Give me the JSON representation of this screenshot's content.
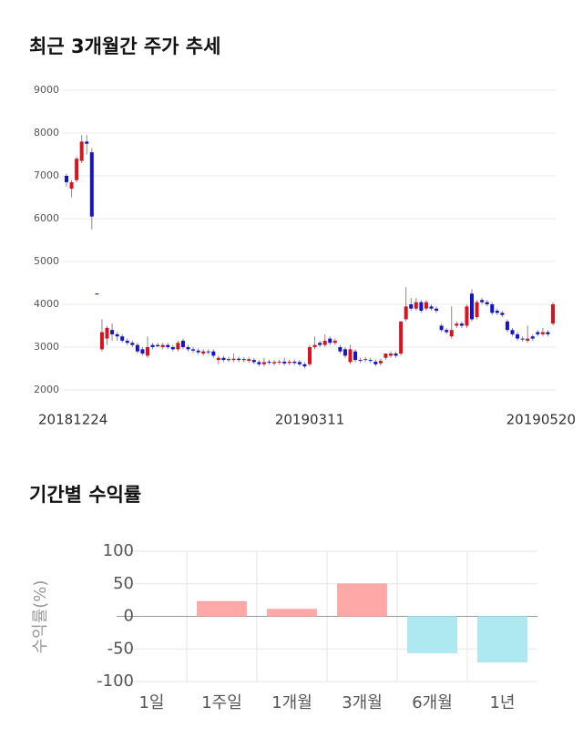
{
  "chart_data": [
    {
      "type": "candlestick",
      "title": "최근 3개월간 주가 추세",
      "categories": [
        "20181224",
        null,
        null,
        null,
        null,
        null,
        null,
        null,
        null,
        null,
        null,
        null,
        null,
        null,
        null,
        null,
        null,
        null,
        null,
        null,
        null,
        null,
        null,
        null,
        null,
        null,
        null,
        null,
        null,
        null,
        null,
        null,
        null,
        null,
        null,
        null,
        null,
        null,
        null,
        null,
        null,
        null,
        null,
        null,
        null,
        null,
        null,
        null,
        "20190311",
        null,
        null,
        null,
        null,
        null,
        null,
        null,
        null,
        null,
        null,
        null,
        null,
        null,
        null,
        null,
        null,
        null,
        null,
        null,
        null,
        null,
        null,
        null,
        null,
        null,
        null,
        null,
        null,
        null,
        null,
        null,
        null,
        null,
        null,
        null,
        null,
        null,
        null,
        null,
        null,
        null,
        null,
        null,
        null,
        null,
        null,
        null,
        "20190520"
      ],
      "open": [
        7000,
        6700,
        6900,
        7350,
        7800,
        7550,
        4250,
        2950,
        3200,
        3400,
        3300,
        3250,
        3150,
        3100,
        3050,
        2950,
        2800,
        3050,
        3050,
        3000,
        3050,
        3000,
        2950,
        3150,
        3000,
        2950,
        2920,
        2850,
        2900,
        2900,
        2700,
        2750,
        2720,
        2700,
        2730,
        2720,
        2680,
        2700,
        2650,
        2600,
        2660,
        2620,
        2640,
        2660,
        2630,
        2660,
        2650,
        2600,
        2600,
        3000,
        3100,
        3050,
        3200,
        3100,
        3000,
        2950,
        2650,
        2900,
        2700,
        2700,
        2700,
        2660,
        2620,
        2750,
        2800,
        2850,
        2850,
        3650,
        4000,
        3900,
        4050,
        3900,
        3950,
        3900,
        3500,
        3400,
        3250,
        3500,
        3550,
        3500,
        4250,
        3700,
        4100,
        4050,
        4000,
        3850,
        3800,
        3600,
        3400,
        3300,
        3200,
        3150,
        3250,
        3350,
        3300,
        3350,
        3550
      ],
      "high": [
        7050,
        6900,
        7450,
        7950,
        7950,
        7650,
        4260,
        3650,
        3500,
        3550,
        3350,
        3300,
        3200,
        3150,
        3100,
        3000,
        3250,
        3100,
        3100,
        3100,
        3100,
        3050,
        3150,
        3200,
        3050,
        3000,
        2970,
        2950,
        2950,
        2950,
        2800,
        2800,
        2770,
        2850,
        2780,
        2770,
        2770,
        2750,
        2700,
        2750,
        2710,
        2700,
        2710,
        2750,
        2710,
        2710,
        2700,
        2650,
        3050,
        3250,
        3150,
        3300,
        3250,
        3200,
        3050,
        3000,
        3050,
        2950,
        2750,
        2770,
        2750,
        2710,
        2730,
        2850,
        2900,
        2900,
        3600,
        4400,
        4150,
        4150,
        4100,
        4100,
        4000,
        3950,
        3550,
        3450,
        3950,
        3600,
        3600,
        4000,
        4350,
        4100,
        4150,
        4100,
        4050,
        3900,
        3850,
        3650,
        3450,
        3350,
        3250,
        3500,
        3300,
        3400,
        3450,
        3400,
        4050
      ],
      "low": [
        6750,
        6500,
        6850,
        7300,
        7500,
        5750,
        4230,
        2900,
        3050,
        3150,
        3150,
        3100,
        3050,
        3000,
        2850,
        2800,
        2750,
        2950,
        3000,
        2950,
        2950,
        2900,
        2900,
        2950,
        2900,
        2870,
        2830,
        2800,
        2830,
        2750,
        2600,
        2650,
        2650,
        2650,
        2650,
        2650,
        2630,
        2600,
        2550,
        2550,
        2590,
        2570,
        2590,
        2570,
        2580,
        2580,
        2550,
        2500,
        2550,
        2950,
        3000,
        3000,
        3050,
        3050,
        2850,
        2750,
        2600,
        2650,
        2630,
        2650,
        2630,
        2550,
        2570,
        2700,
        2750,
        2750,
        2800,
        3600,
        3850,
        3850,
        3800,
        3850,
        3850,
        3800,
        3350,
        3300,
        3200,
        3450,
        3450,
        3450,
        3600,
        3650,
        4000,
        3950,
        3750,
        3750,
        3700,
        3350,
        3250,
        3150,
        3130,
        3100,
        3150,
        3250,
        3250,
        3250,
        3500
      ],
      "close": [
        6850,
        6850,
        7400,
        7800,
        7750,
        6050,
        4240,
        3350,
        3450,
        3300,
        3250,
        3150,
        3100,
        3050,
        2900,
        2850,
        3000,
        3000,
        3020,
        3050,
        3000,
        2950,
        3100,
        3000,
        2950,
        2920,
        2880,
        2900,
        2880,
        2800,
        2750,
        2700,
        2700,
        2730,
        2700,
        2700,
        2720,
        2650,
        2600,
        2650,
        2640,
        2650,
        2660,
        2620,
        2660,
        2630,
        2600,
        2550,
        3000,
        3050,
        3050,
        3150,
        3100,
        3150,
        2900,
        2800,
        2950,
        2700,
        2680,
        2720,
        2680,
        2600,
        2680,
        2850,
        2850,
        2800,
        3600,
        3950,
        3900,
        4050,
        3850,
        4050,
        3900,
        3850,
        3400,
        3350,
        3400,
        3550,
        3500,
        3950,
        3650,
        4050,
        4050,
        4000,
        3800,
        3800,
        3750,
        3400,
        3300,
        3200,
        3180,
        3200,
        3200,
        3300,
        3350,
        3300,
        4000
      ],
      "up_color": "#d7141e",
      "down_color": "#1414c8",
      "ylim": [
        2000,
        9000
      ],
      "yticks": [
        2000,
        3000,
        4000,
        5000,
        6000,
        7000,
        8000,
        9000
      ],
      "grid": true
    },
    {
      "type": "bar",
      "title": "기간별 수익률",
      "y_label": "수익률(%)",
      "categories": [
        "1일",
        "1주일",
        "1개월",
        "3개월",
        "6개월",
        "1년"
      ],
      "values": [
        0,
        23,
        11,
        50,
        -56,
        -70
      ],
      "positive_color": "#ffa8a8",
      "negative_color": "#aee9f2",
      "ylim": [
        -100,
        100
      ],
      "yticks": [
        -100,
        -50,
        0,
        50,
        100
      ],
      "grid": true
    }
  ]
}
